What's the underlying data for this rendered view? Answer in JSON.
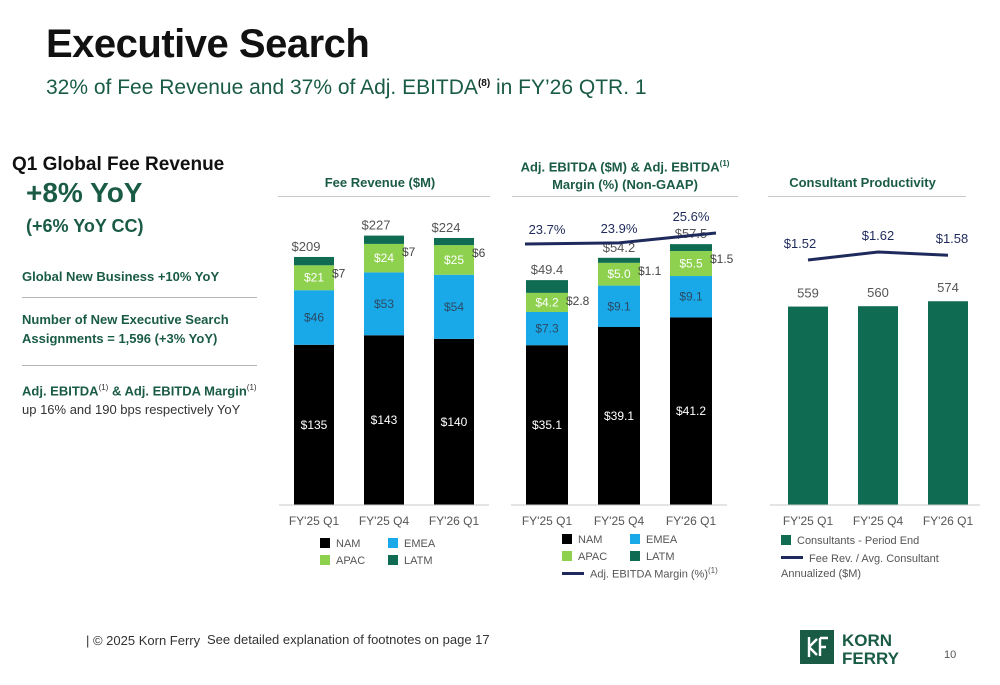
{
  "slide": {
    "title": "Executive Search",
    "subtitle": "32% of Fee Revenue and 37% of Adj. EBITDA",
    "subtitle_sup": "(8)",
    "subtitle_tail": " in FY’26 QTR. 1",
    "page_number": "10"
  },
  "summary": {
    "heading": "Q1 Global Fee Revenue",
    "yoy": "+8% YoY",
    "yoy_cc": "(+6% YoY CC)",
    "kpi1": "Global New Business +10% YoY",
    "kpi2": "Number of New Executive Search Assignments = 1,596 (+3% YoY)",
    "kpi3_bold_a": "Adj. EBITDA",
    "kpi3_sup1": "(1)",
    "kpi3_bold_b": " & Adj. EBITDA Margin",
    "kpi3_sup2": "(1)",
    "kpi3_rest": " up 16% and 190 bps respectively YoY"
  },
  "colors": {
    "NAM": "#000000",
    "EMEA": "#1aa9e8",
    "APAC": "#8dd14e",
    "LATM": "#0f6b52",
    "consultants": "#0f6b52",
    "line": "#1f2a5c",
    "brand": "#1a5b46"
  },
  "chart_data": [
    {
      "type": "bar",
      "title": "Fee Revenue ($M)",
      "categories": [
        "FY'25 Q1",
        "FY'25 Q4",
        "FY'26 Q1"
      ],
      "series": [
        {
          "name": "NAM",
          "values": [
            135,
            143,
            140
          ],
          "labels": [
            "$135",
            "$143",
            "$140"
          ]
        },
        {
          "name": "EMEA",
          "values": [
            46,
            53,
            54
          ],
          "labels": [
            "$46",
            "$53",
            "$54"
          ]
        },
        {
          "name": "APAC",
          "values": [
            21,
            24,
            25
          ],
          "labels": [
            "$21",
            "$24",
            "$25"
          ]
        },
        {
          "name": "LATM",
          "values": [
            7,
            7,
            6
          ],
          "labels": [
            "$7",
            "$7",
            "$6"
          ]
        }
      ],
      "totals": [
        "$209",
        "$227",
        "$224"
      ],
      "stacked": true,
      "ylim": [
        0,
        227
      ],
      "legend": [
        "NAM",
        "EMEA",
        "APAC",
        "LATM"
      ],
      "legend_position": "bottom"
    },
    {
      "type": "bar",
      "title": "Adj. EBITDA ($M) & Adj. EBITDA",
      "title_sup": "(1)",
      "title_line2": "Margin (%) (Non-GAAP)",
      "categories": [
        "FY'25 Q1",
        "FY'25 Q4",
        "FY'26 Q1"
      ],
      "series": [
        {
          "name": "NAM",
          "values": [
            35.1,
            39.1,
            41.2
          ],
          "labels": [
            "$35.1",
            "$39.1",
            "$41.2"
          ]
        },
        {
          "name": "EMEA",
          "values": [
            7.3,
            9.1,
            9.1
          ],
          "labels": [
            "$7.3",
            "$9.1",
            "$9.1"
          ]
        },
        {
          "name": "APAC",
          "values": [
            4.2,
            5.0,
            5.5
          ],
          "labels": [
            "$4.2",
            "$5.0",
            "$5.5"
          ]
        },
        {
          "name": "LATM",
          "values": [
            2.8,
            1.1,
            1.5
          ],
          "labels": [
            "$2.8",
            "$1.1",
            "$1.5"
          ]
        }
      ],
      "totals": [
        "$49.4",
        "$54.2",
        "$57.5"
      ],
      "line_series": {
        "name": "Adj. EBITDA Margin (%)",
        "name_sup": "(1)",
        "values": [
          23.7,
          23.9,
          25.6
        ],
        "labels": [
          "23.7%",
          "23.9%",
          "25.6%"
        ]
      },
      "stacked": true,
      "legend": [
        "NAM",
        "EMEA",
        "APAC",
        "LATM",
        "Adj. EBITDA Margin (%)"
      ],
      "legend_position": "bottom"
    },
    {
      "type": "bar",
      "title": "Consultant Productivity",
      "categories": [
        "FY'25 Q1",
        "FY'25 Q4",
        "FY'26 Q1"
      ],
      "series": [
        {
          "name": "Consultants - Period End",
          "values": [
            559,
            560,
            574
          ],
          "labels": [
            "559",
            "560",
            "574"
          ]
        }
      ],
      "line_series": {
        "name": "Fee Rev. / Avg. Consultant Annualized ($M)",
        "values": [
          1.52,
          1.62,
          1.58
        ],
        "labels": [
          "$1.52",
          "$1.62",
          "$1.58"
        ]
      },
      "legend": [
        "Consultants - Period End",
        "Fee Rev. / Avg. Consultant Annualized ($M)"
      ],
      "legend_position": "bottom"
    }
  ],
  "footer": {
    "copyright": "| © 2025 Korn Ferry",
    "note": "See detailed explanation of footnotes on page 17"
  },
  "logo": {
    "line1": "KORN",
    "line2": "FERRY"
  }
}
